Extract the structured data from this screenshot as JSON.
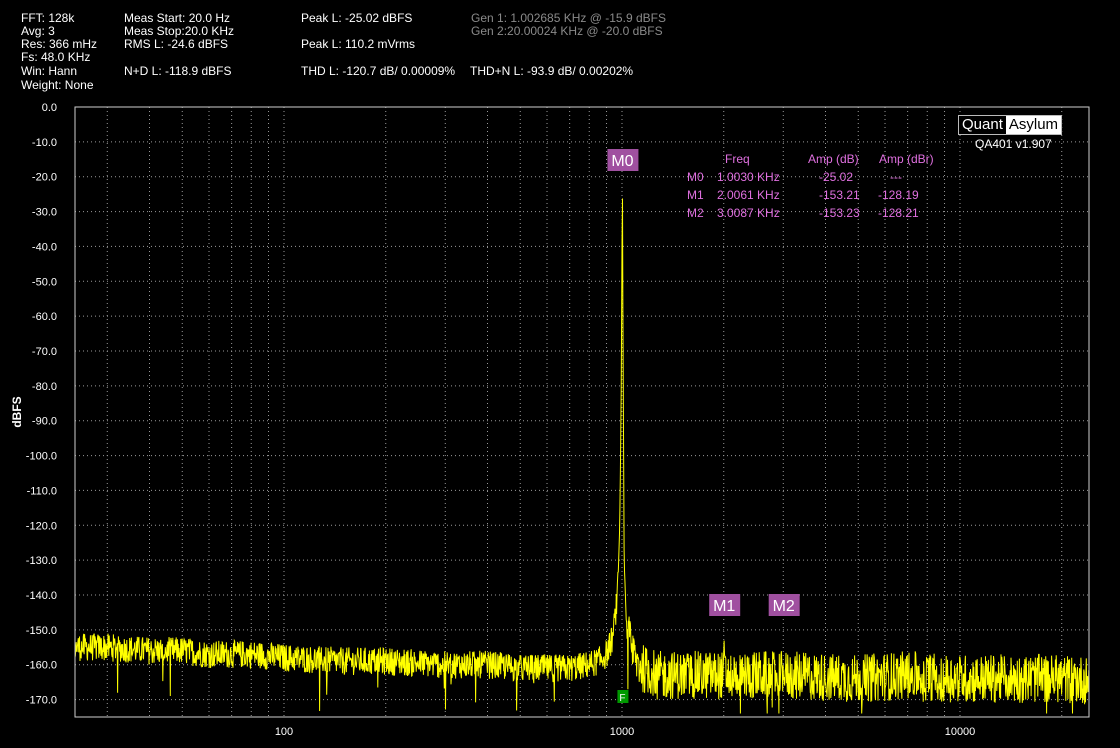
{
  "header": {
    "fft": "FFT: 128k",
    "avg": "Avg: 3",
    "res": "Res: 366 mHz",
    "fs": "Fs: 48.0 KHz",
    "win": "Win: Hann",
    "weight": "Weight: None",
    "meas_start": "Meas Start: 20.0 Hz",
    "meas_stop": "Meas Stop:20.0 KHz",
    "rms_l": "RMS L: -24.6 dBFS",
    "nd_l": "N+D L: -118.9 dBFS",
    "peak_l_dbfs": "Peak L: -25.02 dBFS",
    "peak_l_vrms": "Peak L: 110.2 mVrms",
    "thd_l": "THD L: -120.7 dB/ 0.00009%",
    "thdn_l": "THD+N L: -93.9 dB/ 0.00202%",
    "gen1": "Gen 1: 1.002685 KHz @ -15.9  dBFS",
    "gen2": "Gen 2:20.00024 KHz @ -20.0  dBFS"
  },
  "brand": {
    "quant": "Quant",
    "asylum": "Asylum",
    "version": "QA401 v1.907"
  },
  "marker_table": {
    "headers": [
      "Freq",
      "Amp (dB)",
      "Amp (dBr)"
    ],
    "rows": [
      {
        "name": "M0",
        "freq": "1.0030 KHz",
        "amp_db": "-25.02",
        "amp_dbr": "---"
      },
      {
        "name": "M1",
        "freq": "2.0061 KHz",
        "amp_db": "-153.21",
        "amp_dbr": "-128.19"
      },
      {
        "name": "M2",
        "freq": "3.0087 KHz",
        "amp_db": "-153.23",
        "amp_dbr": "-128.21"
      }
    ]
  },
  "colors": {
    "trace": "#ffff00",
    "marker": "#a050a0",
    "grid": "#9a9a9a",
    "background": "#000000",
    "text": "#ffffff"
  },
  "chart_data": {
    "type": "line",
    "title": "",
    "xlabel": "",
    "ylabel": "dBFS",
    "x_scale": "log",
    "xlim": [
      20,
      33000
    ],
    "ylim": [
      -175,
      0
    ],
    "x_ticks": [
      100,
      1000,
      10000
    ],
    "x_tick_labels": [
      "100",
      "1000",
      "10000"
    ],
    "y_ticks": [
      0,
      -10,
      -20,
      -30,
      -40,
      -50,
      -60,
      -70,
      -80,
      -90,
      -100,
      -110,
      -120,
      -130,
      -140,
      -150,
      -160,
      -170
    ],
    "y_tick_labels": [
      "0.0",
      "-10.0",
      "-20.0",
      "-30.0",
      "-40.0",
      "-50.0",
      "-60.0",
      "-70.0",
      "-80.0",
      "-90.0",
      "-100.0",
      "-110.0",
      "-120.0",
      "-130.0",
      "-140.0",
      "-150.0",
      "-160.0",
      "-170.0"
    ],
    "grid": true,
    "series": [
      {
        "x": [
          30,
          40,
          50,
          60,
          80,
          100,
          150,
          200,
          300,
          400,
          500,
          600,
          700,
          800,
          850,
          900,
          940,
          970,
          985,
          995,
          1000,
          1003,
          1006,
          1015,
          1030,
          1060,
          1100,
          1150,
          1200,
          1300,
          1500,
          2000,
          2006,
          2012,
          3000,
          3009,
          3015,
          5000,
          7000,
          10000,
          15000,
          20000,
          30000
        ],
        "y": [
          -155,
          -156,
          -156,
          -157,
          -157,
          -158,
          -159,
          -159,
          -160,
          -160,
          -161,
          -161,
          -161,
          -160,
          -159,
          -157,
          -152,
          -140,
          -120,
          -80,
          -40,
          -25.02,
          -60,
          -130,
          -148,
          -155,
          -159,
          -161,
          -162,
          -163,
          -163,
          -163,
          -153.21,
          -163,
          -163,
          -153.23,
          -163,
          -164,
          -163,
          -164,
          -164,
          -164,
          -165
        ]
      }
    ],
    "markers": [
      {
        "name": "M0",
        "x": 1003,
        "y": -25.02
      },
      {
        "name": "M1",
        "x": 2006.1,
        "y": -153.21
      },
      {
        "name": "M2",
        "x": 3008.7,
        "y": -153.23
      }
    ]
  }
}
